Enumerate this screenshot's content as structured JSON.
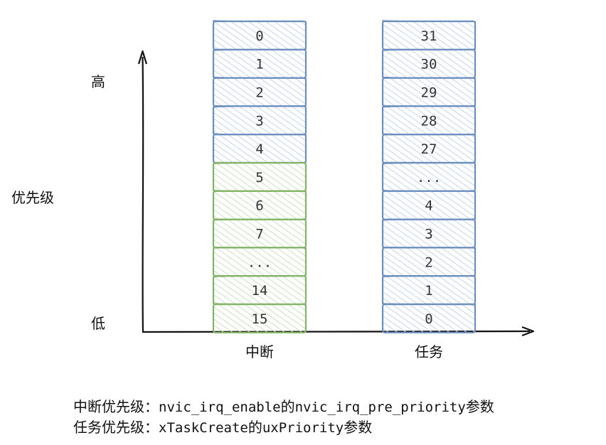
{
  "axis": {
    "y_label": "优先级",
    "y_high": "高",
    "y_low": "低"
  },
  "columns": [
    {
      "label": "中断",
      "cells": [
        {
          "text": "0",
          "group": "blue"
        },
        {
          "text": "1",
          "group": "blue"
        },
        {
          "text": "2",
          "group": "blue"
        },
        {
          "text": "3",
          "group": "blue"
        },
        {
          "text": "4",
          "group": "blue"
        },
        {
          "text": "5",
          "group": "green"
        },
        {
          "text": "6",
          "group": "green"
        },
        {
          "text": "7",
          "group": "green"
        },
        {
          "text": "...",
          "group": "green"
        },
        {
          "text": "14",
          "group": "green"
        },
        {
          "text": "15",
          "group": "green"
        }
      ]
    },
    {
      "label": "任务",
      "cells": [
        {
          "text": "31",
          "group": "blue"
        },
        {
          "text": "30",
          "group": "blue"
        },
        {
          "text": "29",
          "group": "blue"
        },
        {
          "text": "28",
          "group": "blue"
        },
        {
          "text": "27",
          "group": "blue"
        },
        {
          "text": "...",
          "group": "blue"
        },
        {
          "text": "4",
          "group": "blue"
        },
        {
          "text": "3",
          "group": "blue"
        },
        {
          "text": "2",
          "group": "blue"
        },
        {
          "text": "1",
          "group": "blue"
        },
        {
          "text": "0",
          "group": "blue"
        }
      ]
    }
  ],
  "colors": {
    "blue_stroke": "#6c8ebf",
    "blue_hatch": "#c9d8ee",
    "green_stroke": "#82b366",
    "green_hatch": "#cfe3c2",
    "axis": "#111111"
  },
  "captions": {
    "interrupt": {
      "prefix": "中断优先级：",
      "func": "nvic_irq_enable",
      "mid": "的",
      "param": "nvic_irq_pre_priority",
      "suffix": "参数"
    },
    "task": {
      "prefix": "任务优先级：",
      "func": "xTaskCreate",
      "mid": "的",
      "param": "uxPriority",
      "suffix": "参数"
    }
  }
}
